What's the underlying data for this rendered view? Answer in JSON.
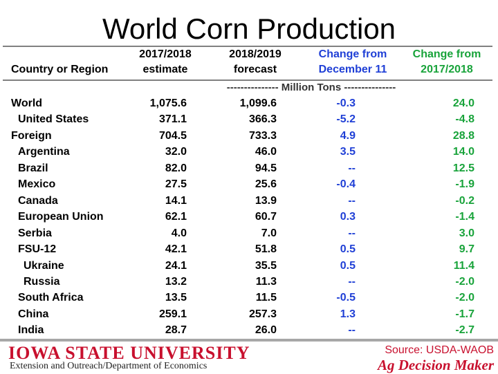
{
  "title": "World Corn Production",
  "headers": {
    "country": "Country or Region",
    "col1_line1": "2017/2018",
    "col1_line2": "estimate",
    "col2_line1": "2018/2019",
    "col2_line2": "forecast",
    "col3_line1": "Change from",
    "col3_line2": "December 11",
    "col4_line1": "Change from",
    "col4_line2": "2017/2018"
  },
  "units": "--------------- Million Tons ---------------",
  "rows": [
    {
      "name": "World",
      "v1": "1,075.6",
      "v2": "1,099.6",
      "v3": "-0.3",
      "v4": "24.0"
    },
    {
      "name": "United States",
      "v1": "371.1",
      "v2": "366.3",
      "v3": "-5.2",
      "v4": "-4.8"
    },
    {
      "name": "Foreign",
      "v1": "704.5",
      "v2": "733.3",
      "v3": "4.9",
      "v4": "28.8"
    },
    {
      "name": "Argentina",
      "v1": "32.0",
      "v2": "46.0",
      "v3": "3.5",
      "v4": "14.0"
    },
    {
      "name": "Brazil",
      "v1": "82.0",
      "v2": "94.5",
      "v3": "--",
      "v4": "12.5"
    },
    {
      "name": "Mexico",
      "v1": "27.5",
      "v2": "25.6",
      "v3": "-0.4",
      "v4": "-1.9"
    },
    {
      "name": "Canada",
      "v1": "14.1",
      "v2": "13.9",
      "v3": "--",
      "v4": "-0.2"
    },
    {
      "name": "European Union",
      "v1": "62.1",
      "v2": "60.7",
      "v3": "0.3",
      "v4": "-1.4"
    },
    {
      "name": "Serbia",
      "v1": "4.0",
      "v2": "7.0",
      "v3": "--",
      "v4": "3.0"
    },
    {
      "name": "FSU-12",
      "v1": "42.1",
      "v2": "51.8",
      "v3": "0.5",
      "v4": "9.7"
    },
    {
      "name": "Ukraine",
      "v1": "24.1",
      "v2": "35.5",
      "v3": "0.5",
      "v4": "11.4"
    },
    {
      "name": "Russia",
      "v1": "13.2",
      "v2": "11.3",
      "v3": "--",
      "v4": "-2.0"
    },
    {
      "name": "South Africa",
      "v1": "13.5",
      "v2": "11.5",
      "v3": "-0.5",
      "v4": "-2.0"
    },
    {
      "name": "China",
      "v1": "259.1",
      "v2": "257.3",
      "v3": "1.3",
      "v4": "-1.7"
    },
    {
      "name": "India",
      "v1": "28.7",
      "v2": "26.0",
      "v3": "--",
      "v4": "-2.7"
    }
  ],
  "footer": {
    "university": "IOWA STATE UNIVERSITY",
    "department": "Extension and Outreach/Department of Economics",
    "source": "Source: USDA-WAOB",
    "brand": "Ag Decision Maker"
  },
  "colors": {
    "change_dec": "#1f3fd6",
    "change_year": "#18a33a",
    "brand_red": "#c8102e"
  }
}
